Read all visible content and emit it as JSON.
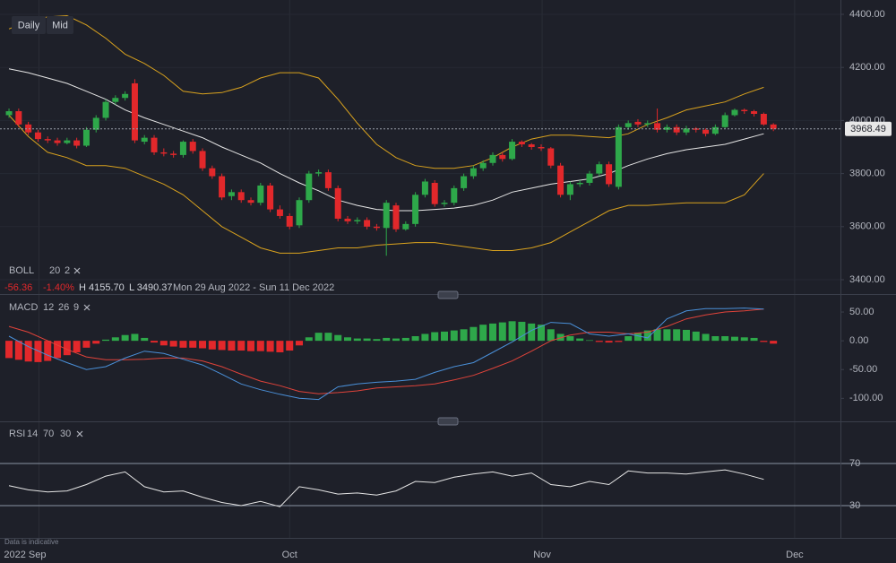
{
  "header": {
    "interval": "Daily",
    "price_type": "Mid"
  },
  "data_note": "Data is indicative",
  "chart_data": [
    {
      "type": "candlestick",
      "categories": [
        null,
        null,
        null,
        null,
        null,
        null,
        null,
        null,
        null,
        null,
        null,
        null,
        null,
        null,
        null,
        null,
        null,
        null,
        null,
        null,
        null,
        null,
        null,
        null,
        null,
        null,
        null,
        null,
        null,
        null,
        null,
        null,
        null,
        null,
        null,
        null,
        null,
        null,
        null,
        null,
        null,
        null,
        null,
        null,
        null,
        null,
        null,
        null,
        null,
        null,
        null,
        null,
        null,
        null,
        null,
        null,
        null,
        null,
        null,
        null,
        null,
        null,
        null,
        null,
        null,
        null,
        null,
        null,
        null,
        null,
        null,
        null,
        null,
        null,
        null,
        null,
        null,
        null,
        null,
        null
      ],
      "open": [
        4020,
        4035,
        3985,
        3955,
        3930,
        3925,
        3915,
        3925,
        3905,
        3965,
        4010,
        4070,
        4085,
        4140,
        3920,
        3935,
        3880,
        3875,
        3870,
        3920,
        3885,
        3820,
        3790,
        3715,
        3730,
        3700,
        3690,
        3755,
        3665,
        3640,
        3605,
        3700,
        3800,
        3805,
        3745,
        3630,
        3620,
        3625,
        3600,
        3595,
        3680,
        3590,
        3610,
        3720,
        3765,
        3685,
        3690,
        3745,
        3790,
        3820,
        3840,
        3870,
        3855,
        3920,
        3910,
        3900,
        3895,
        3830,
        3720,
        3760,
        3765,
        3800,
        3835,
        3750,
        3975,
        3995,
        3985,
        3990,
        3965,
        3975,
        3955,
        3970,
        3965,
        3950,
        3975,
        4020,
        4040,
        4035,
        4025,
        3985
      ],
      "high": [
        4045,
        4045,
        3995,
        3965,
        3940,
        3935,
        3935,
        3935,
        3975,
        4020,
        4080,
        4095,
        4110,
        4155.7,
        3945,
        3945,
        3895,
        3885,
        3925,
        3930,
        3895,
        3830,
        3800,
        3740,
        3740,
        3710,
        3765,
        3765,
        3680,
        3650,
        3710,
        3810,
        3815,
        3815,
        3755,
        3640,
        3635,
        3635,
        3610,
        3700,
        3690,
        3620,
        3730,
        3780,
        3775,
        3700,
        3755,
        3800,
        3830,
        3850,
        3880,
        3880,
        3930,
        3925,
        3915,
        3910,
        3900,
        3840,
        3770,
        3775,
        3810,
        3845,
        3845,
        3985,
        4000,
        4005,
        4000,
        4045,
        3985,
        3985,
        3980,
        3975,
        3970,
        3985,
        4030,
        4045,
        4045,
        4040,
        4030,
        3990
      ],
      "low": [
        4010,
        3975,
        3945,
        3920,
        3915,
        3905,
        3910,
        3895,
        3900,
        3955,
        4000,
        4060,
        4075,
        3915,
        3910,
        3870,
        3865,
        3860,
        3860,
        3875,
        3810,
        3780,
        3700,
        3700,
        3690,
        3680,
        3680,
        3655,
        3630,
        3590,
        3595,
        3690,
        3790,
        3735,
        3620,
        3610,
        3610,
        3590,
        3585,
        3490.37,
        3580,
        3585,
        3600,
        3710,
        3675,
        3675,
        3680,
        3735,
        3780,
        3810,
        3830,
        3845,
        3850,
        3900,
        3890,
        3885,
        3820,
        3710,
        3700,
        3750,
        3755,
        3790,
        3750,
        3740,
        3965,
        3975,
        3975,
        3955,
        3955,
        3945,
        3945,
        3955,
        3940,
        3945,
        3970,
        4015,
        4025,
        4015,
        3980,
        3960
      ],
      "close": [
        4035,
        3985,
        3955,
        3930,
        3925,
        3915,
        3925,
        3905,
        3965,
        4010,
        4070,
        4085,
        4100,
        3925,
        3935,
        3880,
        3875,
        3870,
        3920,
        3885,
        3820,
        3790,
        3710,
        3730,
        3700,
        3690,
        3755,
        3665,
        3640,
        3600,
        3700,
        3800,
        3805,
        3745,
        3630,
        3620,
        3625,
        3600,
        3595,
        3690,
        3590,
        3610,
        3720,
        3770,
        3685,
        3690,
        3745,
        3790,
        3820,
        3840,
        3870,
        3855,
        3920,
        3910,
        3900,
        3895,
        3830,
        3720,
        3760,
        3765,
        3800,
        3835,
        3760,
        3975,
        3990,
        3985,
        3990,
        3965,
        3975,
        3955,
        3970,
        3965,
        3950,
        3975,
        4020,
        4040,
        4035,
        4025,
        3985,
        3968.49
      ],
      "up_color": "#2ea84a",
      "down_color": "#e2282b",
      "ylim": [
        3346,
        4454
      ],
      "yticks": [
        {
          "value": 3400,
          "label": "3400.00"
        },
        {
          "value": 3600,
          "label": "3600.00"
        },
        {
          "value": 3800,
          "label": "3800.00"
        },
        {
          "value": 4000,
          "label": "4000.00"
        },
        {
          "value": 4200,
          "label": "4200.00"
        },
        {
          "value": 4400,
          "label": "4400.00"
        }
      ],
      "xlim": [
        -0.93,
        85.93
      ],
      "xticks": [
        {
          "value": 3.1,
          "label": "2022 Sep"
        },
        {
          "value": 29,
          "label": "Oct"
        },
        {
          "value": 55.1,
          "label": "Nov"
        },
        {
          "value": 81.2,
          "label": "Dec"
        }
      ],
      "last_price": 3968.49,
      "bollinger": {
        "label": "BOLL",
        "period": 20,
        "stddev": 2,
        "band_color": "#d9a21e",
        "mid_color": "#e6e6e6",
        "x": [
          0,
          2,
          4,
          6,
          8,
          10,
          12,
          14,
          16,
          18,
          20,
          22,
          24,
          26,
          28,
          30,
          32,
          34,
          36,
          38,
          40,
          42,
          44,
          46,
          48,
          50,
          52,
          54,
          56,
          58,
          60,
          62,
          64,
          66,
          68,
          70,
          72,
          74,
          76,
          78
        ],
        "upper": [
          4345,
          4375,
          4390,
          4395,
          4360,
          4310,
          4250,
          4215,
          4170,
          4110,
          4100,
          4105,
          4125,
          4160,
          4180,
          4180,
          4160,
          4080,
          3990,
          3910,
          3860,
          3830,
          3820,
          3820,
          3830,
          3860,
          3900,
          3930,
          3945,
          3945,
          3940,
          3935,
          3950,
          3985,
          4010,
          4040,
          4055,
          4070,
          4100,
          4125
        ],
        "middle": [
          4195,
          4180,
          4160,
          4140,
          4110,
          4080,
          4040,
          4010,
          3985,
          3960,
          3935,
          3900,
          3870,
          3840,
          3800,
          3765,
          3735,
          3700,
          3680,
          3665,
          3660,
          3660,
          3665,
          3670,
          3680,
          3700,
          3730,
          3745,
          3760,
          3770,
          3780,
          3800,
          3830,
          3855,
          3875,
          3890,
          3900,
          3910,
          3930,
          3950
        ],
        "lower": [
          4020,
          3940,
          3880,
          3860,
          3830,
          3830,
          3820,
          3790,
          3760,
          3720,
          3660,
          3600,
          3560,
          3520,
          3500,
          3500,
          3510,
          3520,
          3520,
          3530,
          3535,
          3540,
          3540,
          3530,
          3520,
          3510,
          3510,
          3520,
          3540,
          3580,
          3620,
          3660,
          3680,
          3680,
          3685,
          3690,
          3690,
          3690,
          3720,
          3800
        ]
      },
      "info": {
        "change": "-56.36",
        "change_pct": "-1.40%",
        "high": "H 4155.70",
        "low": "L 3490.37",
        "range": "Mon 29 Aug 2022 - Sun 11 Dec 2022"
      }
    },
    {
      "type": "macd",
      "label": "MACD",
      "params": [
        12,
        26,
        9
      ],
      "ylim": [
        -140,
        75
      ],
      "yticks": [
        {
          "value": 50,
          "label": "50.00"
        },
        {
          "value": 0,
          "label": "0.00"
        },
        {
          "value": -50,
          "label": "-50.00"
        },
        {
          "value": -100,
          "label": "-100.00"
        }
      ],
      "histogram": [
        -30,
        -33,
        -36,
        -37,
        -35,
        -30,
        -25,
        -20,
        -12,
        -5,
        2,
        6,
        10,
        12,
        5,
        -3,
        -8,
        -10,
        -12,
        -12,
        -13,
        -15,
        -16,
        -17,
        -17,
        -18,
        -18,
        -19,
        -20,
        -17,
        -8,
        6,
        14,
        14,
        10,
        6,
        4,
        4,
        3,
        5,
        4,
        5,
        8,
        12,
        15,
        16,
        18,
        20,
        24,
        28,
        30,
        32,
        34,
        33,
        30,
        28,
        20,
        12,
        8,
        4,
        1,
        -2,
        -3,
        -2,
        8,
        14,
        18,
        20,
        20,
        20,
        19,
        16,
        12,
        8,
        8,
        7,
        6,
        5,
        -2,
        -5
      ],
      "up_color": "#2ea84a",
      "down_color": "#e2282b",
      "x": [
        0,
        2,
        4,
        6,
        8,
        10,
        12,
        14,
        16,
        18,
        20,
        22,
        24,
        26,
        28,
        30,
        32,
        34,
        36,
        38,
        40,
        42,
        44,
        46,
        48,
        50,
        52,
        54,
        56,
        58,
        60,
        62,
        64,
        66,
        68,
        70,
        72,
        74,
        76,
        78
      ],
      "macd_line": {
        "color": "#4a90d9",
        "values": [
          8,
          -10,
          -25,
          -38,
          -50,
          -45,
          -30,
          -18,
          -22,
          -32,
          -42,
          -58,
          -75,
          -85,
          -93,
          -100,
          -102,
          -80,
          -75,
          -72,
          -70,
          -67,
          -55,
          -45,
          -38,
          -20,
          -2,
          18,
          32,
          30,
          12,
          8,
          12,
          5,
          38,
          52,
          56,
          56,
          57,
          55
        ]
      },
      "signal_line": {
        "color": "#e0433a",
        "values": [
          25,
          15,
          0,
          -15,
          -28,
          -33,
          -33,
          -32,
          -30,
          -30,
          -35,
          -45,
          -58,
          -70,
          -78,
          -88,
          -92,
          -90,
          -87,
          -82,
          -80,
          -78,
          -75,
          -68,
          -60,
          -48,
          -35,
          -18,
          0,
          10,
          15,
          15,
          12,
          15,
          25,
          38,
          45,
          50,
          52,
          55
        ]
      }
    },
    {
      "type": "rsi",
      "label": "RSI",
      "params": [
        14,
        70,
        30
      ],
      "ylim": [
        1,
        105
      ],
      "yticks": [
        70,
        30
      ],
      "color": "#e6e6e6",
      "level_color": "#8b94a3",
      "x": [
        0,
        2,
        4,
        6,
        8,
        10,
        12,
        14,
        16,
        18,
        20,
        22,
        24,
        26,
        28,
        30,
        32,
        34,
        36,
        38,
        40,
        42,
        44,
        46,
        48,
        50,
        52,
        54,
        56,
        58,
        60,
        62,
        64,
        66,
        68,
        70,
        72,
        74,
        76,
        78
      ],
      "values": [
        49,
        45,
        43,
        44,
        50,
        58,
        62,
        48,
        43,
        44,
        38,
        33,
        30,
        34,
        29,
        48,
        45,
        41,
        42,
        40,
        44,
        53,
        52,
        57,
        60,
        62,
        58,
        61,
        50,
        48,
        53,
        50,
        63,
        61,
        61,
        60,
        62,
        64,
        60,
        55
      ]
    }
  ]
}
